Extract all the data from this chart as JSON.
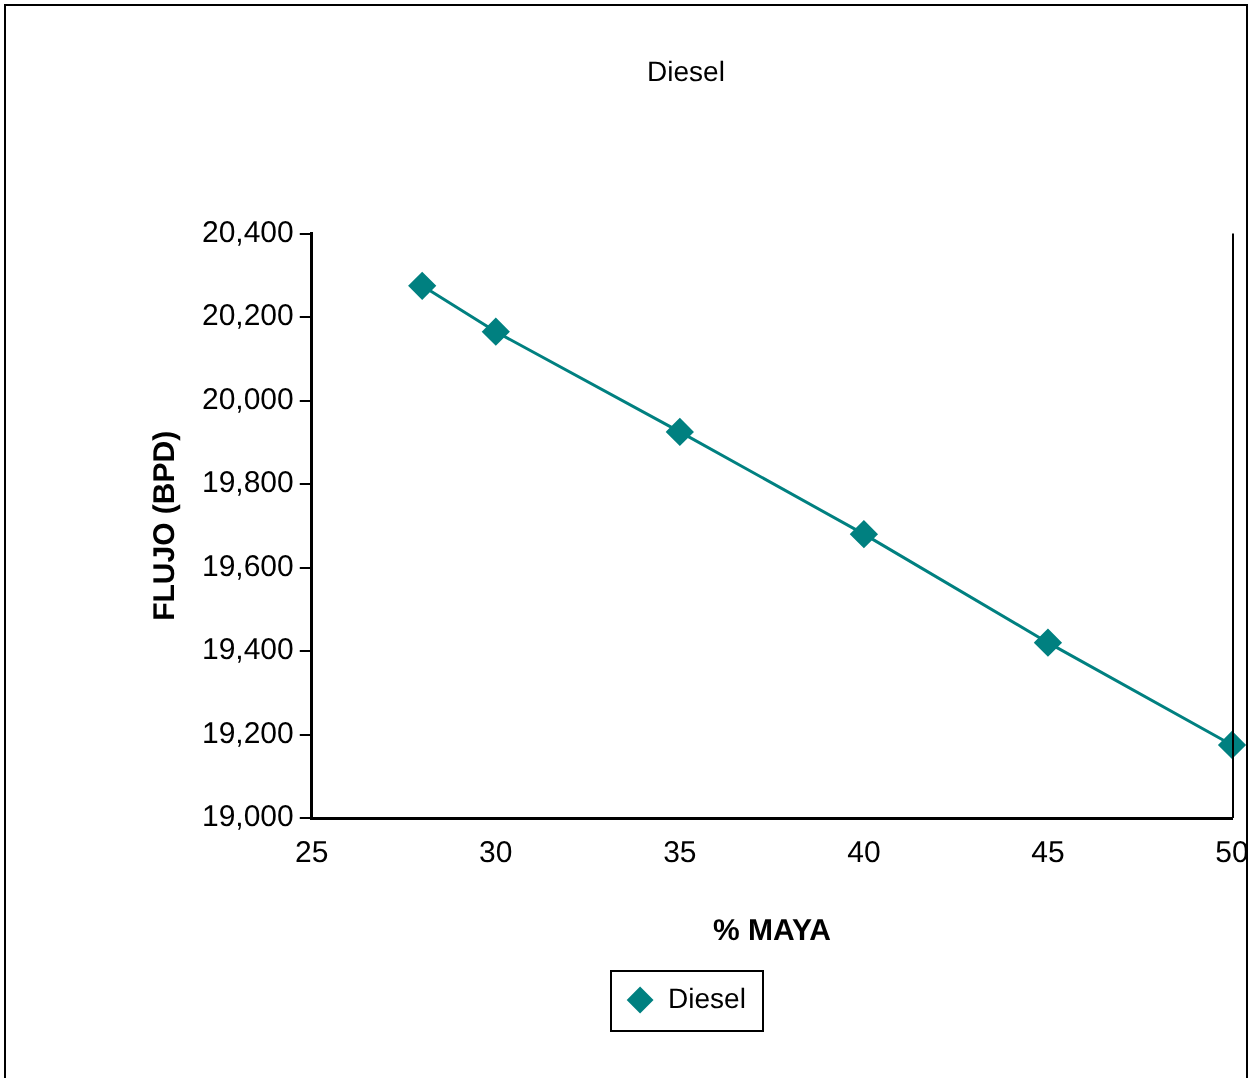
{
  "chart_data": {
    "type": "line",
    "title": "Diesel",
    "xlabel": "% MAYA",
    "ylabel": "FLUJO (BPD)",
    "x": [
      28,
      30,
      35,
      40,
      45,
      50
    ],
    "series": [
      {
        "name": "Diesel",
        "color": "#008080",
        "values": [
          20275,
          20165,
          19925,
          19680,
          19420,
          19175
        ]
      }
    ],
    "xlim": [
      25,
      50
    ],
    "xticks": [
      25,
      30,
      35,
      40,
      45,
      50
    ],
    "ylim": [
      19000,
      20400
    ],
    "yticks": [
      {
        "value": 19000,
        "label": "19,000"
      },
      {
        "value": 19200,
        "label": "19,200"
      },
      {
        "value": 19400,
        "label": "19,400"
      },
      {
        "value": 19600,
        "label": "19,600"
      },
      {
        "value": 19800,
        "label": "19,800"
      },
      {
        "value": 20000,
        "label": "20,000"
      },
      {
        "value": 20200,
        "label": "20,200"
      },
      {
        "value": 20400,
        "label": "20,400"
      }
    ],
    "grid": false,
    "legend": "bottom",
    "marker": "diamond",
    "line_style": "solid"
  }
}
